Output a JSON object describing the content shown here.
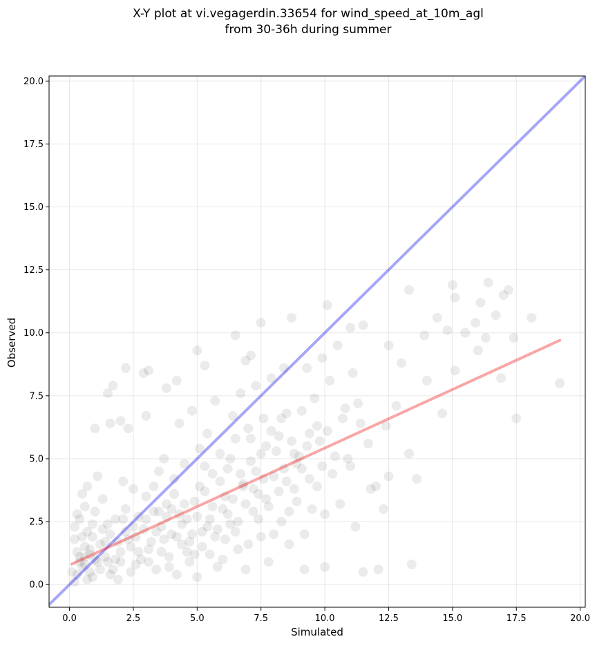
{
  "chart_data": {
    "type": "scatter",
    "title_lines": [
      "X-Y plot at vi.vegagerdin.33654 for wind_speed_at_10m_agl",
      "from 30-36h during summer"
    ],
    "xlabel": "Simulated",
    "ylabel": "Observed",
    "xlim": [
      -0.8,
      20.2
    ],
    "ylim": [
      -0.9,
      20.2
    ],
    "x_ticks": [
      0.0,
      2.5,
      5.0,
      7.5,
      10.0,
      12.5,
      15.0,
      17.5,
      20.0
    ],
    "x_tick_labels": [
      "0.0",
      "2.5",
      "5.0",
      "7.5",
      "10.0",
      "12.5",
      "15.0",
      "17.5",
      "20.0"
    ],
    "y_ticks": [
      0.0,
      2.5,
      5.0,
      7.5,
      10.0,
      12.5,
      15.0,
      17.5,
      20.0
    ],
    "y_tick_labels": [
      "0.0",
      "2.5",
      "5.0",
      "7.5",
      "10.0",
      "12.5",
      "15.0",
      "17.5",
      "20.0"
    ],
    "grid": true,
    "point_color": "#000000",
    "point_alpha": 0.08,
    "reference_lines": [
      {
        "x": [
          -0.8,
          20.2
        ],
        "y": [
          -0.8,
          20.2
        ],
        "color": "#0000ee",
        "alpha": 0.35
      },
      {
        "x": [
          0.1,
          19.2
        ],
        "y": [
          0.82,
          9.7
        ],
        "color": "#ee0000",
        "alpha": 0.35
      }
    ],
    "points": [
      [
        0.5,
        0.7
      ],
      [
        0.8,
        1.2
      ],
      [
        0.3,
        0.4
      ],
      [
        1.1,
        0.9
      ],
      [
        0.6,
        1.5
      ],
      [
        1.4,
        1.1
      ],
      [
        0.9,
        0.3
      ],
      [
        0.2,
        1.8
      ],
      [
        1.7,
        0.6
      ],
      [
        0.7,
        2.1
      ],
      [
        1.2,
        1.6
      ],
      [
        0.4,
        0.9
      ],
      [
        2.0,
        1.3
      ],
      [
        1.5,
        2.4
      ],
      [
        0.3,
        2.8
      ],
      [
        0.8,
        0.5
      ],
      [
        1.9,
        0.2
      ],
      [
        2.3,
        1.8
      ],
      [
        0.6,
        3.1
      ],
      [
        1.0,
        2.9
      ],
      [
        2.6,
        0.8
      ],
      [
        2.9,
        2.2
      ],
      [
        1.3,
        3.4
      ],
      [
        0.5,
        3.6
      ],
      [
        3.1,
        1.4
      ],
      [
        3.4,
        0.6
      ],
      [
        2.2,
        3.0
      ],
      [
        1.8,
        1.0
      ],
      [
        2.7,
        2.7
      ],
      [
        3.6,
        2.3
      ],
      [
        3.9,
        1.1
      ],
      [
        4.2,
        0.4
      ],
      [
        0.2,
        0.1
      ],
      [
        0.9,
        1.9
      ],
      [
        1.6,
        0.4
      ],
      [
        2.4,
        0.5
      ],
      [
        3.0,
        3.5
      ],
      [
        3.3,
        2.9
      ],
      [
        3.8,
        3.2
      ],
      [
        4.0,
        2.0
      ],
      [
        4.4,
        1.6
      ],
      [
        4.7,
        0.9
      ],
      [
        5.0,
        0.3
      ],
      [
        2.1,
        4.1
      ],
      [
        2.5,
        3.8
      ],
      [
        1.1,
        4.3
      ],
      [
        0.7,
        3.9
      ],
      [
        4.6,
        2.6
      ],
      [
        4.9,
        3.3
      ],
      [
        5.2,
        2.1
      ],
      [
        5.5,
        1.2
      ],
      [
        5.8,
        0.7
      ],
      [
        6.1,
        1.8
      ],
      [
        3.5,
        4.5
      ],
      [
        3.7,
        5.0
      ],
      [
        4.1,
        4.2
      ],
      [
        4.5,
        4.8
      ],
      [
        5.3,
        3.7
      ],
      [
        5.6,
        4.4
      ],
      [
        6.0,
        3.0
      ],
      [
        6.3,
        2.4
      ],
      [
        6.6,
        1.4
      ],
      [
        6.9,
        0.6
      ],
      [
        7.2,
        2.9
      ],
      [
        7.5,
        1.9
      ],
      [
        7.8,
        0.9
      ],
      [
        5.1,
        5.4
      ],
      [
        5.4,
        6.0
      ],
      [
        5.9,
        5.2
      ],
      [
        6.2,
        4.6
      ],
      [
        6.5,
        5.8
      ],
      [
        6.8,
        4.0
      ],
      [
        7.1,
        4.9
      ],
      [
        7.4,
        3.6
      ],
      [
        7.7,
        5.5
      ],
      [
        8.0,
        4.3
      ],
      [
        8.3,
        2.5
      ],
      [
        8.6,
        1.6
      ],
      [
        8.9,
        3.3
      ],
      [
        9.2,
        2.0
      ],
      [
        4.3,
        6.4
      ],
      [
        4.8,
        6.9
      ],
      [
        5.7,
        7.3
      ],
      [
        6.4,
        6.7
      ],
      [
        6.7,
        7.6
      ],
      [
        7.0,
        6.2
      ],
      [
        7.3,
        7.9
      ],
      [
        7.6,
        6.6
      ],
      [
        7.9,
        8.2
      ],
      [
        8.2,
        5.9
      ],
      [
        8.5,
        6.8
      ],
      [
        8.8,
        5.2
      ],
      [
        9.1,
        4.6
      ],
      [
        9.4,
        6.0
      ],
      [
        9.7,
        3.9
      ],
      [
        10.0,
        2.8
      ],
      [
        10.3,
        4.4
      ],
      [
        10.6,
        3.2
      ],
      [
        10.9,
        5.0
      ],
      [
        11.2,
        2.3
      ],
      [
        9.3,
        8.6
      ],
      [
        9.6,
        7.4
      ],
      [
        9.9,
        9.0
      ],
      [
        10.2,
        8.1
      ],
      [
        10.5,
        9.5
      ],
      [
        10.8,
        7.0
      ],
      [
        11.1,
        8.4
      ],
      [
        11.4,
        6.4
      ],
      [
        11.7,
        5.6
      ],
      [
        12.0,
        3.9
      ],
      [
        10.1,
        11.1
      ],
      [
        11.0,
        10.2
      ],
      [
        11.5,
        10.3
      ],
      [
        12.5,
        9.5
      ],
      [
        13.0,
        8.8
      ],
      [
        13.3,
        11.7
      ],
      [
        12.4,
        6.3
      ],
      [
        13.6,
        4.2
      ],
      [
        12.8,
        7.1
      ],
      [
        14.0,
        8.1
      ],
      [
        13.9,
        9.9
      ],
      [
        14.4,
        10.6
      ],
      [
        14.8,
        10.1
      ],
      [
        15.0,
        11.9
      ],
      [
        15.1,
        11.4
      ],
      [
        15.5,
        10.0
      ],
      [
        15.9,
        10.4
      ],
      [
        16.1,
        11.2
      ],
      [
        16.3,
        9.8
      ],
      [
        16.4,
        12.0
      ],
      [
        16.7,
        10.7
      ],
      [
        17.0,
        11.5
      ],
      [
        17.2,
        11.7
      ],
      [
        17.4,
        9.8
      ],
      [
        16.9,
        8.2
      ],
      [
        17.5,
        6.6
      ],
      [
        15.1,
        8.5
      ],
      [
        14.6,
        6.8
      ],
      [
        16.0,
        9.3
      ],
      [
        18.1,
        10.6
      ],
      [
        19.2,
        8.0
      ],
      [
        13.4,
        0.8
      ],
      [
        12.1,
        0.6
      ],
      [
        11.5,
        0.5
      ],
      [
        10.0,
        0.7
      ],
      [
        9.2,
        0.6
      ],
      [
        13.3,
        5.2
      ],
      [
        12.5,
        4.3
      ],
      [
        11.8,
        3.8
      ],
      [
        12.3,
        3.0
      ],
      [
        1.0,
        6.2
      ],
      [
        1.5,
        7.6
      ],
      [
        2.0,
        6.5
      ],
      [
        2.9,
        8.4
      ],
      [
        3.1,
        8.5
      ],
      [
        2.2,
        8.6
      ],
      [
        3.0,
        6.7
      ],
      [
        1.6,
        6.4
      ],
      [
        1.7,
        7.9
      ],
      [
        2.3,
        6.2
      ],
      [
        4.2,
        8.1
      ],
      [
        3.8,
        7.8
      ],
      [
        5.3,
        8.7
      ],
      [
        5.0,
        9.3
      ],
      [
        6.5,
        9.9
      ],
      [
        7.5,
        10.4
      ],
      [
        8.4,
        8.6
      ],
      [
        8.7,
        10.6
      ],
      [
        7.1,
        9.1
      ],
      [
        6.9,
        8.9
      ],
      [
        0.4,
        1.1
      ],
      [
        0.6,
        0.8
      ],
      [
        0.8,
        1.4
      ],
      [
        1.0,
        1.0
      ],
      [
        0.3,
        1.3
      ],
      [
        0.5,
        1.9
      ],
      [
        0.7,
        0.2
      ],
      [
        1.2,
        0.6
      ],
      [
        1.4,
        1.7
      ],
      [
        0.9,
        2.4
      ],
      [
        1.6,
        2.0
      ],
      [
        1.8,
        2.6
      ],
      [
        2.0,
        0.9
      ],
      [
        2.2,
        2.1
      ],
      [
        2.4,
        1.5
      ],
      [
        2.6,
        1.9
      ],
      [
        2.8,
        1.0
      ],
      [
        3.0,
        2.6
      ],
      [
        3.2,
        1.7
      ],
      [
        3.4,
        2.1
      ],
      [
        3.6,
        1.3
      ],
      [
        3.8,
        2.7
      ],
      [
        4.0,
        3.0
      ],
      [
        4.2,
        1.9
      ],
      [
        4.4,
        2.4
      ],
      [
        4.6,
        1.3
      ],
      [
        4.8,
        2.0
      ],
      [
        5.0,
        2.7
      ],
      [
        5.2,
        1.5
      ],
      [
        5.4,
        2.3
      ],
      [
        5.6,
        3.1
      ],
      [
        5.8,
        2.2
      ],
      [
        6.0,
        1.0
      ],
      [
        6.2,
        2.8
      ],
      [
        6.4,
        3.4
      ],
      [
        6.6,
        2.5
      ],
      [
        6.8,
        3.9
      ],
      [
        7.0,
        1.6
      ],
      [
        7.2,
        3.8
      ],
      [
        7.4,
        2.6
      ],
      [
        7.6,
        4.2
      ],
      [
        7.8,
        3.1
      ],
      [
        8.0,
        2.0
      ],
      [
        8.2,
        3.7
      ],
      [
        8.4,
        4.6
      ],
      [
        8.6,
        2.9
      ],
      [
        8.8,
        3.8
      ],
      [
        9.0,
        5.1
      ],
      [
        9.4,
        4.2
      ],
      [
        9.8,
        5.7
      ],
      [
        0.1,
        0.5
      ],
      [
        0.2,
        2.3
      ],
      [
        0.4,
        2.6
      ],
      [
        0.6,
        1.1
      ],
      [
        1.3,
        2.2
      ],
      [
        1.5,
        0.9
      ],
      [
        1.9,
        1.7
      ],
      [
        2.1,
        2.6
      ],
      [
        2.5,
        2.3
      ],
      [
        2.7,
        1.3
      ],
      [
        3.1,
        0.9
      ],
      [
        3.3,
        3.9
      ],
      [
        3.5,
        2.9
      ],
      [
        3.7,
        1.8
      ],
      [
        3.9,
        0.7
      ],
      [
        4.1,
        3.6
      ],
      [
        4.3,
        2.8
      ],
      [
        4.5,
        3.2
      ],
      [
        4.7,
        1.7
      ],
      [
        4.9,
        1.2
      ],
      [
        5.1,
        3.9
      ],
      [
        5.3,
        4.7
      ],
      [
        5.5,
        2.6
      ],
      [
        5.7,
        1.9
      ],
      [
        5.9,
        4.1
      ],
      [
        6.1,
        3.5
      ],
      [
        6.3,
        5.0
      ],
      [
        6.5,
        2.1
      ],
      [
        6.7,
        4.4
      ],
      [
        6.9,
        3.2
      ],
      [
        7.1,
        5.8
      ],
      [
        7.3,
        4.5
      ],
      [
        7.5,
        5.2
      ],
      [
        7.7,
        3.4
      ],
      [
        7.9,
        6.1
      ],
      [
        8.1,
        5.3
      ],
      [
        8.3,
        6.6
      ],
      [
        8.5,
        4.1
      ],
      [
        8.7,
        5.7
      ],
      [
        8.9,
        4.8
      ],
      [
        9.1,
        6.9
      ],
      [
        9.3,
        5.5
      ],
      [
        9.5,
        3.0
      ],
      [
        9.7,
        6.3
      ],
      [
        9.9,
        4.7
      ],
      [
        10.1,
        6.1
      ],
      [
        10.4,
        5.1
      ],
      [
        10.7,
        6.6
      ],
      [
        11.0,
        4.7
      ],
      [
        11.3,
        7.2
      ]
    ]
  }
}
